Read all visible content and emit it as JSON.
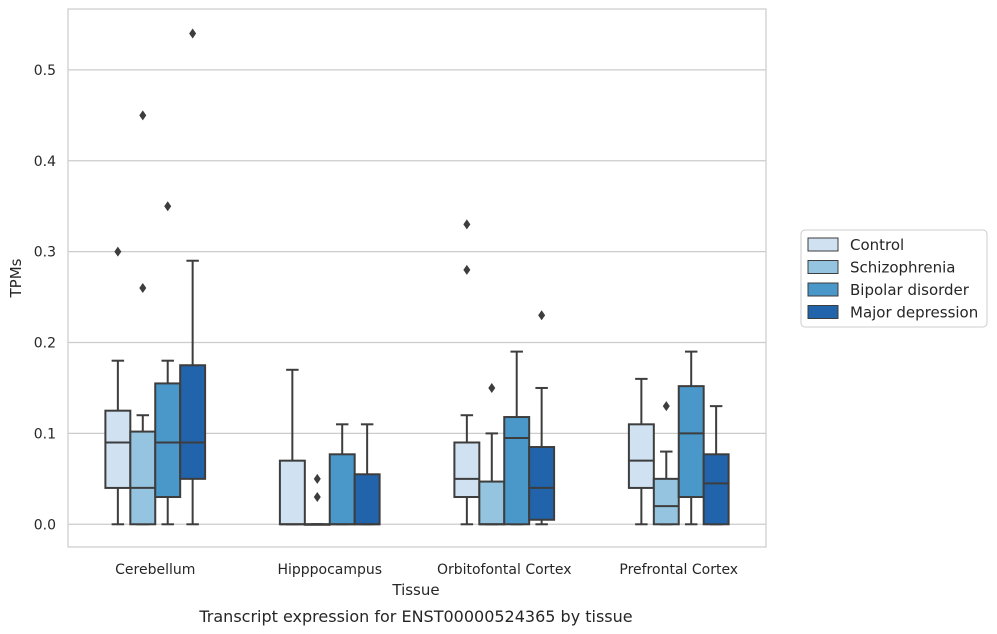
{
  "caption": "Transcript expression for ENST00000524365 by tissue",
  "chart_data": {
    "type": "box",
    "xlabel": "Tissue",
    "ylabel": "TPMs",
    "ylim": [
      -0.025,
      0.567
    ],
    "yticks": [
      0.0,
      0.1,
      0.2,
      0.3,
      0.4,
      0.5
    ],
    "ytick_labels": [
      "0.0",
      "0.1",
      "0.2",
      "0.3",
      "0.4",
      "0.5"
    ],
    "grid": true,
    "legend_position": "right",
    "categories": [
      "Cerebellum",
      "Hipppocampus",
      "Orbitofontal Cortex",
      "Prefrontal Cortex"
    ],
    "series": [
      {
        "name": "Control",
        "color": "#d0e1f1",
        "boxes": [
          {
            "whislo": 0.0,
            "q1": 0.04,
            "med": 0.09,
            "q3": 0.125,
            "whishi": 0.18,
            "fliers": [
              0.3
            ]
          },
          {
            "whislo": 0.0,
            "q1": 0.0,
            "med": 0.0,
            "q3": 0.07,
            "whishi": 0.17,
            "fliers": []
          },
          {
            "whislo": 0.0,
            "q1": 0.03,
            "med": 0.05,
            "q3": 0.09,
            "whishi": 0.12,
            "fliers": [
              0.28,
              0.33
            ]
          },
          {
            "whislo": 0.0,
            "q1": 0.04,
            "med": 0.07,
            "q3": 0.11,
            "whishi": 0.16,
            "fliers": []
          }
        ]
      },
      {
        "name": "Schizophrenia",
        "color": "#94c4df",
        "boxes": [
          {
            "whislo": 0.0,
            "q1": 0.0,
            "med": 0.04,
            "q3": 0.102,
            "whishi": 0.12,
            "fliers": [
              0.26,
              0.45
            ]
          },
          {
            "whislo": 0.0,
            "q1": 0.0,
            "med": 0.0,
            "q3": 0.0,
            "whishi": 0.0,
            "fliers": [
              0.03,
              0.05
            ]
          },
          {
            "whislo": 0.0,
            "q1": 0.0,
            "med": 0.0,
            "q3": 0.047,
            "whishi": 0.1,
            "fliers": [
              0.15
            ]
          },
          {
            "whislo": 0.0,
            "q1": 0.0,
            "med": 0.02,
            "q3": 0.05,
            "whishi": 0.08,
            "fliers": [
              0.13
            ]
          }
        ]
      },
      {
        "name": "Bipolar disorder",
        "color": "#4a98c9",
        "boxes": [
          {
            "whislo": 0.0,
            "q1": 0.03,
            "med": 0.09,
            "q3": 0.155,
            "whishi": 0.18,
            "fliers": [
              0.35
            ]
          },
          {
            "whislo": 0.0,
            "q1": 0.0,
            "med": 0.0,
            "q3": 0.077,
            "whishi": 0.11,
            "fliers": []
          },
          {
            "whislo": 0.0,
            "q1": 0.0,
            "med": 0.095,
            "q3": 0.118,
            "whishi": 0.19,
            "fliers": []
          },
          {
            "whislo": 0.0,
            "q1": 0.03,
            "med": 0.1,
            "q3": 0.152,
            "whishi": 0.19,
            "fliers": []
          }
        ]
      },
      {
        "name": "Major depression",
        "color": "#2164ab",
        "boxes": [
          {
            "whislo": 0.0,
            "q1": 0.05,
            "med": 0.09,
            "q3": 0.175,
            "whishi": 0.29,
            "fliers": [
              0.54
            ]
          },
          {
            "whislo": 0.0,
            "q1": 0.0,
            "med": 0.0,
            "q3": 0.055,
            "whishi": 0.11,
            "fliers": []
          },
          {
            "whislo": 0.0,
            "q1": 0.005,
            "med": 0.04,
            "q3": 0.085,
            "whishi": 0.15,
            "fliers": [
              0.23
            ]
          },
          {
            "whislo": 0.0,
            "q1": 0.0,
            "med": 0.045,
            "q3": 0.077,
            "whishi": 0.13,
            "fliers": []
          }
        ]
      }
    ]
  }
}
